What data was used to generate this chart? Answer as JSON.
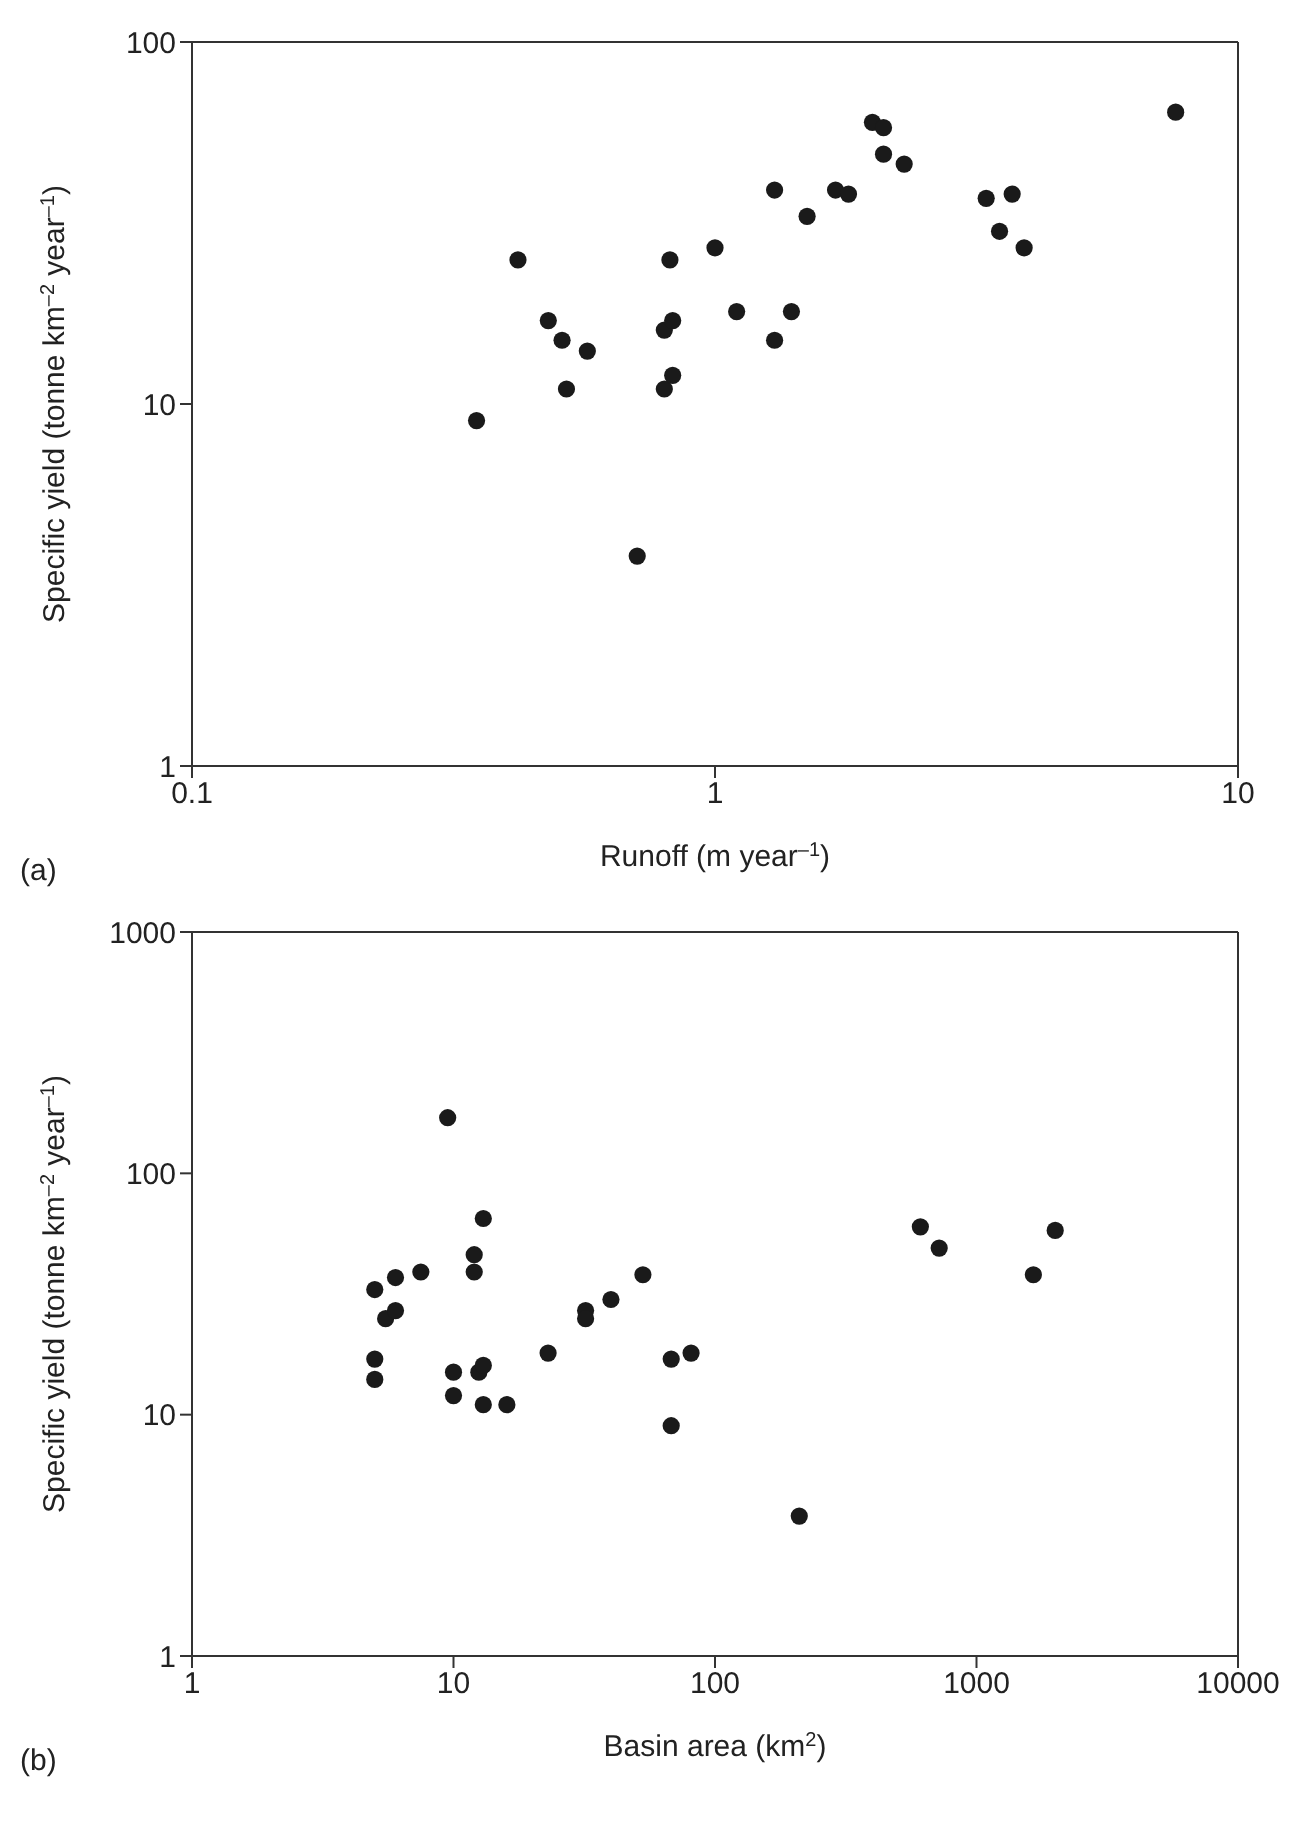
{
  "chart_data": [
    {
      "type": "scatter",
      "xlabel": "Runoff (m year$^{–1}$)",
      "ylabel": "Specific yield (tonne km$^{–2}$ year$^{–1}$)",
      "annotations": [
        "(a)"
      ],
      "log": "xy",
      "marker": "circle",
      "xlim": [
        0.1,
        10
      ],
      "xticks": [
        0.1,
        1,
        10
      ],
      "ylim": [
        1,
        100
      ],
      "yticks": [
        1,
        10,
        100
      ],
      "series": [
        {
          "color": "#1a1a1a",
          "x": [
            0.35,
            0.42,
            0.48,
            0.51,
            0.52,
            0.57,
            0.71,
            0.8,
            0.8,
            0.82,
            0.83,
            0.83,
            1.0,
            1.1,
            1.3,
            1.3,
            1.4,
            1.5,
            1.7,
            1.8,
            2.0,
            2.1,
            2.1,
            2.3,
            3.3,
            3.5,
            3.7,
            3.9,
            7.6
          ],
          "values": [
            9,
            25,
            17,
            15,
            11,
            14,
            3.8,
            16,
            11,
            25,
            17,
            12,
            27,
            18,
            15,
            39,
            18,
            33,
            39,
            38,
            60,
            58,
            49,
            46,
            37,
            30,
            38,
            27,
            64
          ]
        }
      ]
    },
    {
      "type": "scatter",
      "xlabel": "Basin area (km$^{2}$)",
      "ylabel": "Specific yield (tonne km$^{–2}$ year$^{–1}$)",
      "annotations": [
        "(b)"
      ],
      "log": "xy",
      "marker": "circle",
      "xlim": [
        1,
        10000
      ],
      "xticks": [
        1,
        10,
        100,
        1000,
        10000
      ],
      "ylim": [
        1,
        1000
      ],
      "yticks": [
        1,
        10,
        100,
        1000
      ],
      "series": [
        {
          "color": "#1a1a1a",
          "x": [
            5,
            5,
            5,
            5.5,
            6,
            6,
            7.5,
            9.5,
            10,
            10,
            12,
            12,
            12.5,
            13,
            13,
            13,
            16,
            23,
            32,
            32,
            40,
            53,
            68,
            68,
            81,
            210,
            610,
            720,
            1650,
            2000
          ],
          "values": [
            33,
            17,
            14,
            25,
            27,
            37,
            39,
            170,
            15,
            12,
            46,
            39,
            15,
            16,
            11,
            65,
            11,
            18,
            27,
            25,
            30,
            38,
            17,
            9,
            18,
            3.8,
            60,
            49,
            38,
            58
          ]
        }
      ]
    }
  ]
}
